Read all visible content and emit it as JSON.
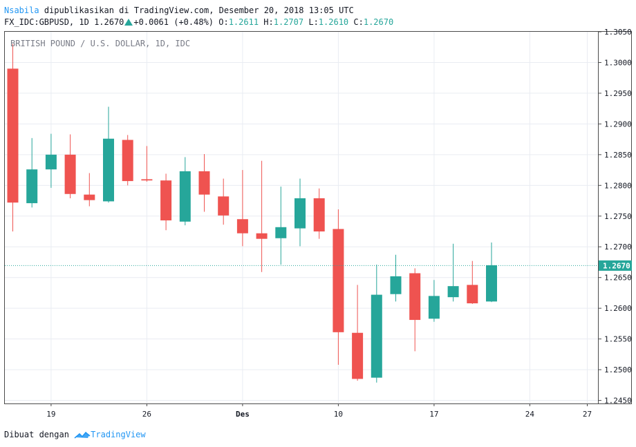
{
  "header": {
    "user": "Nsabila",
    "published_text": "dipublikasikan di TradingView.com, Desember 20, 2018 13:05 UTC",
    "symbol": "FX_IDC:GBPUSD, 1D",
    "last_price": "1.2670",
    "change": "+0.0061 (+0.48%)",
    "open_label": "O:",
    "open": "1.2611",
    "high_label": "H:",
    "high": "1.2707",
    "low_label": "L:",
    "low": "1.2610",
    "close_label": "C:",
    "close": "1.2670"
  },
  "footer": {
    "made_with": "Dibuat dengan",
    "brand": "TradingView"
  },
  "chart_data": {
    "type": "candlestick",
    "title": "BRITISH POUND / U.S. DOLLAR, 1D, IDC",
    "ylim": [
      1.2445,
      1.305
    ],
    "y_ticks": [
      "1.3050",
      "1.3000",
      "1.2950",
      "1.2900",
      "1.2850",
      "1.2800",
      "1.2750",
      "1.2700",
      "1.2650",
      "1.2600",
      "1.2550",
      "1.2500",
      "1.2450"
    ],
    "x_ticks": [
      {
        "label": "19",
        "index": 2
      },
      {
        "label": "26",
        "index": 7
      },
      {
        "label": "Des",
        "index": 12
      },
      {
        "label": "10",
        "index": 17
      },
      {
        "label": "17",
        "index": 22
      },
      {
        "label": "24",
        "index": 27
      },
      {
        "label": "27",
        "index": 30
      }
    ],
    "last_price_label": "1.2670",
    "last_price": 1.267,
    "colors": {
      "up": "#26a69a",
      "down": "#ef5350",
      "grid": "#e9ecf2",
      "price_line": "#26a69a"
    },
    "candles": [
      {
        "o": 1.299,
        "h": 1.303,
        "l": 1.2725,
        "c": 1.2772
      },
      {
        "o": 1.2771,
        "h": 1.2877,
        "l": 1.2764,
        "c": 1.2826
      },
      {
        "o": 1.2826,
        "h": 1.2884,
        "l": 1.2796,
        "c": 1.285
      },
      {
        "o": 1.285,
        "h": 1.2883,
        "l": 1.2779,
        "c": 1.2786
      },
      {
        "o": 1.2785,
        "h": 1.282,
        "l": 1.2766,
        "c": 1.2776
      },
      {
        "o": 1.2774,
        "h": 1.2928,
        "l": 1.2772,
        "c": 1.2876
      },
      {
        "o": 1.2874,
        "h": 1.2882,
        "l": 1.28,
        "c": 1.2807
      },
      {
        "o": 1.281,
        "h": 1.2864,
        "l": 1.2806,
        "c": 1.2808
      },
      {
        "o": 1.2808,
        "h": 1.2819,
        "l": 1.2727,
        "c": 1.2743
      },
      {
        "o": 1.2741,
        "h": 1.2846,
        "l": 1.2735,
        "c": 1.2823
      },
      {
        "o": 1.2823,
        "h": 1.2851,
        "l": 1.2757,
        "c": 1.2785
      },
      {
        "o": 1.2782,
        "h": 1.2811,
        "l": 1.2736,
        "c": 1.2751
      },
      {
        "o": 1.2745,
        "h": 1.2825,
        "l": 1.2701,
        "c": 1.2722
      },
      {
        "o": 1.2722,
        "h": 1.284,
        "l": 1.2659,
        "c": 1.2713
      },
      {
        "o": 1.2714,
        "h": 1.2798,
        "l": 1.2671,
        "c": 1.2732
      },
      {
        "o": 1.273,
        "h": 1.2811,
        "l": 1.2701,
        "c": 1.2779
      },
      {
        "o": 1.2779,
        "h": 1.2795,
        "l": 1.2713,
        "c": 1.2725
      },
      {
        "o": 1.2729,
        "h": 1.2761,
        "l": 1.2508,
        "c": 1.2561
      },
      {
        "o": 1.256,
        "h": 1.2638,
        "l": 1.2482,
        "c": 1.2485
      },
      {
        "o": 1.2487,
        "h": 1.2671,
        "l": 1.2479,
        "c": 1.2622
      },
      {
        "o": 1.2623,
        "h": 1.2687,
        "l": 1.2611,
        "c": 1.2652
      },
      {
        "o": 1.2657,
        "h": 1.2665,
        "l": 1.253,
        "c": 1.2581
      },
      {
        "o": 1.2583,
        "h": 1.2646,
        "l": 1.2578,
        "c": 1.262
      },
      {
        "o": 1.2618,
        "h": 1.2705,
        "l": 1.2611,
        "c": 1.2636
      },
      {
        "o": 1.2638,
        "h": 1.2677,
        "l": 1.2607,
        "c": 1.2608
      },
      {
        "o": 1.2611,
        "h": 1.2707,
        "l": 1.261,
        "c": 1.267
      }
    ]
  }
}
